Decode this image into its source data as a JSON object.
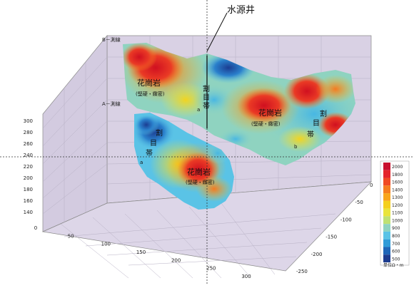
{
  "figure": {
    "callout_title": "水源井",
    "profile_b": "B－測線",
    "profile_a": "A－測線",
    "granite_upper": "花崗岩",
    "granite_upper_sub": "(堅硬・緻密)",
    "granite_right": "花崗岩",
    "granite_right_sub": "(堅硬・緻密)",
    "granite_lower": "花崗岩",
    "granite_lower_sub": "(堅硬・緻密)",
    "crack_glyphs": [
      "割",
      "目",
      "帯"
    ],
    "point_a": "a",
    "point_b": "b"
  },
  "axes": {
    "z_ticks": [
      "300",
      "280",
      "260",
      "240",
      "220",
      "200",
      "180",
      "160",
      "140"
    ],
    "x_ticks": [
      "0",
      "50",
      "100",
      "150",
      "200",
      "250",
      "300"
    ],
    "y_ticks": [
      "0",
      "-50",
      "-100",
      "-150",
      "-200",
      "-250"
    ]
  },
  "legend": {
    "unit_label": "単位Ω・m",
    "levels": [
      {
        "value": "2000",
        "color": "#c8102e"
      },
      {
        "value": "1800",
        "color": "#e4242b"
      },
      {
        "value": "1600",
        "color": "#f04a23"
      },
      {
        "value": "1400",
        "color": "#f57d1f"
      },
      {
        "value": "1300",
        "color": "#f8a51b"
      },
      {
        "value": "1200",
        "color": "#f4cf1d"
      },
      {
        "value": "1100",
        "color": "#e9e43b"
      },
      {
        "value": "1000",
        "color": "#bfe173"
      },
      {
        "value": "900",
        "color": "#8fd3c0"
      },
      {
        "value": "800",
        "color": "#5ac3e6"
      },
      {
        "value": "700",
        "color": "#2f9bd8"
      },
      {
        "value": "600",
        "color": "#1f66b8"
      },
      {
        "value": "500",
        "color": "#1d3c8f"
      }
    ]
  }
}
